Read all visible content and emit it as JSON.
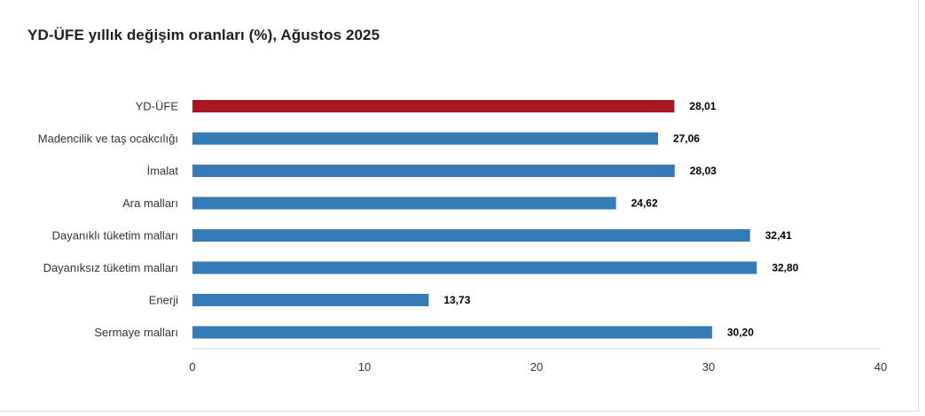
{
  "chart_data": {
    "type": "bar",
    "orientation": "horizontal",
    "title": "YD-ÜFE yıllık değişim oranları (%), Ağustos 2025",
    "xlabel": "",
    "ylabel": "",
    "categories": [
      "YD-ÜFE",
      "Madencilik ve taş ocakcılığı",
      "İmalat",
      "Ara malları",
      "Dayanıklı tüketim malları",
      "Dayanıksız tüketim malları",
      "Enerji",
      "Sermaye malları"
    ],
    "values": [
      28.01,
      27.06,
      28.03,
      24.62,
      32.41,
      32.8,
      13.73,
      30.2
    ],
    "value_labels": [
      "28,01",
      "27,06",
      "28,03",
      "24,62",
      "32,41",
      "32,80",
      "13,73",
      "30,20"
    ],
    "xlim": [
      0,
      40
    ],
    "xticks": [
      0,
      10,
      20,
      30,
      40
    ],
    "grid": false,
    "colors": [
      "#a91622",
      "#337ab7",
      "#337ab7",
      "#337ab7",
      "#337ab7",
      "#337ab7",
      "#337ab7",
      "#337ab7"
    ]
  }
}
